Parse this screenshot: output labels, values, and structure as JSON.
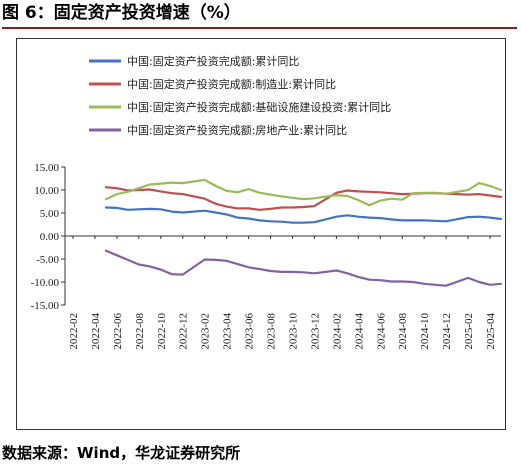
{
  "figure": {
    "title": "图 6：固定资产投资增速（%）",
    "source": "数据来源：Wind，华龙证券研究所"
  },
  "chart_data": {
    "type": "line",
    "title": "",
    "xlabel": "",
    "ylabel": "",
    "ylim": [
      -15,
      15
    ],
    "yticks": [
      15,
      10,
      5,
      0,
      -5,
      -10,
      -15
    ],
    "ytick_labels": [
      "15.00",
      "10.00",
      "5.00",
      "0.00",
      "-5.00",
      "-10.00",
      "-15.00"
    ],
    "x_tick_labels": [
      "2022-02",
      "2022-04",
      "2022-06",
      "2022-08",
      "2022-10",
      "2022-12",
      "2023-02",
      "2023-04",
      "2023-06",
      "2023-08",
      "2023-10",
      "2023-12",
      "2024-02",
      "2024-04",
      "2024-06",
      "2024-08",
      "2024-10",
      "2024-12",
      "2025-02",
      "2025-04"
    ],
    "grid": false,
    "legend_position": "top",
    "x": [
      "2022-05",
      "2022-06",
      "2022-07",
      "2022-08",
      "2022-09",
      "2022-10",
      "2022-11",
      "2022-12",
      "2023-02",
      "2023-03",
      "2023-04",
      "2023-05",
      "2023-06",
      "2023-07",
      "2023-08",
      "2023-09",
      "2023-10",
      "2023-11",
      "2023-12",
      "2024-02",
      "2024-03",
      "2024-04",
      "2024-05",
      "2024-06",
      "2024-07",
      "2024-08",
      "2024-09",
      "2024-10",
      "2024-11",
      "2024-12",
      "2025-02",
      "2025-03",
      "2025-04",
      "2025-05"
    ],
    "series": [
      {
        "name": "中国:固定资产投资完成额:累计同比",
        "color": "#4472c4",
        "values": [
          6.2,
          6.1,
          5.7,
          5.8,
          5.9,
          5.8,
          5.3,
          5.1,
          5.5,
          5.1,
          4.7,
          4.0,
          3.8,
          3.4,
          3.2,
          3.1,
          2.9,
          2.9,
          3.0,
          4.2,
          4.5,
          4.2,
          4.0,
          3.9,
          3.6,
          3.4,
          3.4,
          3.4,
          3.3,
          3.2,
          4.1,
          4.2,
          4.0,
          3.7
        ]
      },
      {
        "name": "中国:固定资产投资完成额:制造业:累计同比",
        "color": "#c0504d",
        "values": [
          10.6,
          10.4,
          9.9,
          10.0,
          10.1,
          9.7,
          9.3,
          9.1,
          8.1,
          7.0,
          6.4,
          6.0,
          6.0,
          5.7,
          5.9,
          6.2,
          6.2,
          6.3,
          6.5,
          9.4,
          9.9,
          9.7,
          9.6,
          9.5,
          9.3,
          9.1,
          9.2,
          9.3,
          9.3,
          9.2,
          9.0,
          9.1,
          8.8,
          8.5
        ]
      },
      {
        "name": "中国:固定资产投资完成额:基础设施建设投资:累计同比",
        "color": "#9bbb59",
        "values": [
          8.0,
          9.1,
          9.6,
          10.4,
          11.2,
          11.4,
          11.6,
          11.5,
          12.2,
          10.9,
          9.8,
          9.5,
          10.2,
          9.4,
          9.0,
          8.6,
          8.3,
          8.0,
          8.2,
          8.9,
          8.7,
          7.8,
          6.7,
          7.7,
          8.1,
          7.9,
          9.3,
          9.4,
          9.4,
          9.2,
          10.0,
          11.5,
          10.9,
          10.0
        ]
      },
      {
        "name": "中国:固定资产投资完成额:房地产业:累计同比",
        "color": "#8064a2",
        "values": [
          -3.2,
          -4.2,
          -5.2,
          -6.2,
          -6.6,
          -7.3,
          -8.3,
          -8.4,
          -5.1,
          -5.2,
          -5.4,
          -6.1,
          -6.8,
          -7.2,
          -7.6,
          -7.8,
          -7.8,
          -7.9,
          -8.1,
          -7.5,
          -8.1,
          -8.9,
          -9.5,
          -9.6,
          -9.9,
          -9.9,
          -10.0,
          -10.4,
          -10.6,
          -10.8,
          -9.1,
          -10.0,
          -10.6,
          -10.4
        ]
      }
    ]
  }
}
